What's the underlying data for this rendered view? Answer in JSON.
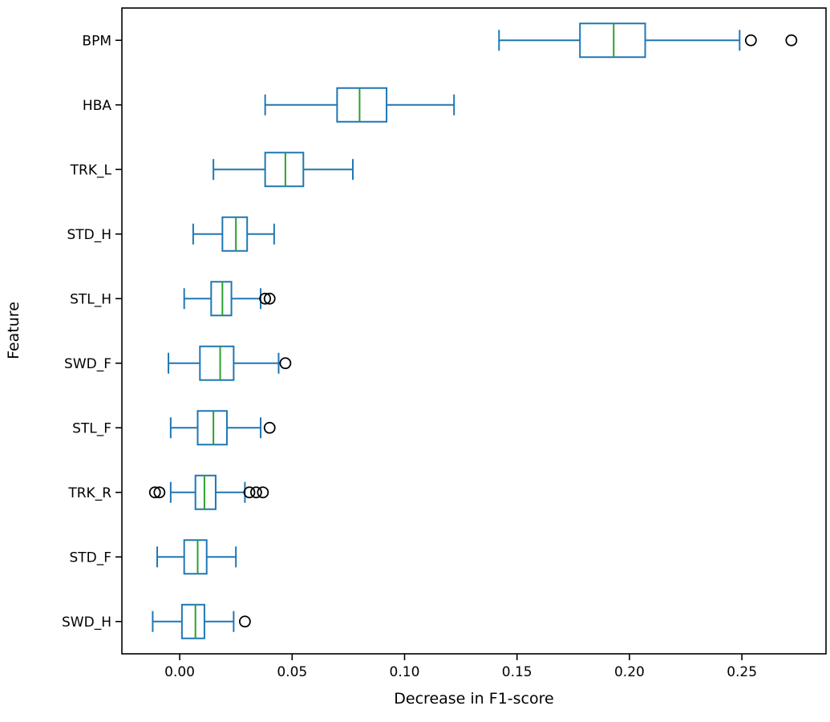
{
  "figure": {
    "background": "#ffffff"
  },
  "chart_data": {
    "type": "boxplot",
    "orientation": "horizontal",
    "title": "",
    "xlabel": "Decrease in F1-score",
    "ylabel": "Feature",
    "xlim": [
      -0.0257,
      0.2874
    ],
    "xticks": [
      0.0,
      0.05,
      0.1,
      0.15,
      0.2,
      0.25
    ],
    "xtick_labels": [
      "0.00",
      "0.05",
      "0.10",
      "0.15",
      "0.20",
      "0.25"
    ],
    "grid": false,
    "legend": "none",
    "colors": {
      "box": "#1f77b4",
      "whisker": "#1f77b4",
      "cap": "#1f77b4",
      "median": "#2ca02c",
      "outlier": "#000000",
      "frame": "#000000",
      "text": "#000000"
    },
    "categories": [
      "BPM",
      "HBA",
      "TRK_L",
      "STD_H",
      "STL_H",
      "SWD_F",
      "STL_F",
      "TRK_R",
      "STD_F",
      "SWD_H"
    ],
    "boxes": [
      {
        "label": "BPM",
        "whislo": 0.142,
        "q1": 0.178,
        "med": 0.193,
        "q3": 0.207,
        "whishi": 0.249,
        "fliers": [
          0.254,
          0.272
        ]
      },
      {
        "label": "HBA",
        "whislo": 0.038,
        "q1": 0.07,
        "med": 0.08,
        "q3": 0.092,
        "whishi": 0.122,
        "fliers": []
      },
      {
        "label": "TRK_L",
        "whislo": 0.015,
        "q1": 0.038,
        "med": 0.047,
        "q3": 0.055,
        "whishi": 0.077,
        "fliers": []
      },
      {
        "label": "STD_H",
        "whislo": 0.006,
        "q1": 0.019,
        "med": 0.025,
        "q3": 0.03,
        "whishi": 0.042,
        "fliers": []
      },
      {
        "label": "STL_H",
        "whislo": 0.002,
        "q1": 0.014,
        "med": 0.019,
        "q3": 0.023,
        "whishi": 0.036,
        "fliers": [
          0.038,
          0.04
        ]
      },
      {
        "label": "SWD_F",
        "whislo": -0.005,
        "q1": 0.009,
        "med": 0.018,
        "q3": 0.024,
        "whishi": 0.044,
        "fliers": [
          0.047
        ]
      },
      {
        "label": "STL_F",
        "whislo": -0.004,
        "q1": 0.008,
        "med": 0.015,
        "q3": 0.021,
        "whishi": 0.036,
        "fliers": [
          0.04
        ]
      },
      {
        "label": "TRK_R",
        "whislo": -0.004,
        "q1": 0.007,
        "med": 0.011,
        "q3": 0.016,
        "whishi": 0.029,
        "fliers": [
          -0.011,
          -0.009,
          0.031,
          0.034,
          0.037
        ]
      },
      {
        "label": "STD_F",
        "whislo": -0.01,
        "q1": 0.002,
        "med": 0.008,
        "q3": 0.012,
        "whishi": 0.025,
        "fliers": []
      },
      {
        "label": "SWD_H",
        "whislo": -0.012,
        "q1": 0.001,
        "med": 0.007,
        "q3": 0.011,
        "whishi": 0.024,
        "fliers": [
          0.029
        ]
      }
    ]
  }
}
